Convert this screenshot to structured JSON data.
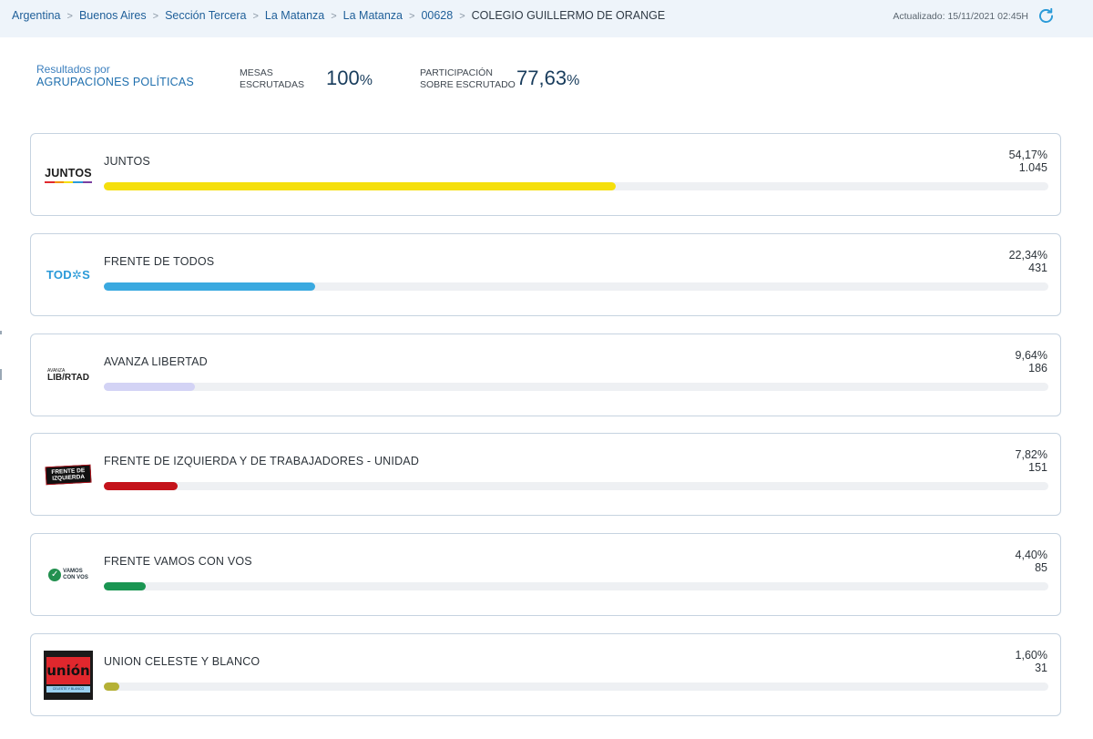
{
  "breadcrumbs": [
    {
      "label": "Argentina"
    },
    {
      "label": "Buenos Aires"
    },
    {
      "label": "Sección Tercera"
    },
    {
      "label": "La Matanza"
    },
    {
      "label": "La Matanza"
    },
    {
      "label": "00628"
    }
  ],
  "breadcrumb_current": "COLEGIO GUILLERMO DE ORANGE",
  "updated": "Actualizado: 15/11/2021 02:45H",
  "summary": {
    "line1": "Resultados por",
    "line2": "AGRUPACIONES POLÍTICAS",
    "mesas_label1": "MESAS",
    "mesas_label2": "ESCRUTADAS",
    "mesas_value": "100",
    "part_label1": "PARTICIPACIÓN",
    "part_label2": "SOBRE ESCRUTADO",
    "part_value": "77,63",
    "pct_sign": "%"
  },
  "parties": [
    {
      "name": "JUNTOS",
      "pct": "54,17%",
      "votes": "1.045",
      "share": 54.17,
      "color": "#f5df0c",
      "logo_text": "JUNTOS"
    },
    {
      "name": "FRENTE DE TODOS",
      "pct": "22,34%",
      "votes": "431",
      "share": 22.34,
      "color": "#3aa9e0",
      "logo_text": "TOD✲S"
    },
    {
      "name": "AVANZA LIBERTAD",
      "pct": "9,64%",
      "votes": "186",
      "share": 9.64,
      "color": "#d3d3f5",
      "logo_small": "AVANZA",
      "logo_text": "LIB/RTAD"
    },
    {
      "name": "FRENTE DE IZQUIERDA Y DE TRABAJADORES - UNIDAD",
      "pct": "7,82%",
      "votes": "151",
      "share": 7.82,
      "color": "#c4131b",
      "logo_text1": "FRENTE DE",
      "logo_text2": "IZQUIERDA"
    },
    {
      "name": "FRENTE VAMOS CON VOS",
      "pct": "4,40%",
      "votes": "85",
      "share": 4.4,
      "color": "#1a9552",
      "logo_text1": "VAMOS",
      "logo_text2": "CON VOS"
    },
    {
      "name": "UNION CELESTE Y BLANCO",
      "pct": "1,60%",
      "votes": "31",
      "share": 1.6,
      "color": "#b5b136",
      "logo_text": "unión",
      "logo_sub": "CELESTE Y BLANCO"
    }
  ]
}
